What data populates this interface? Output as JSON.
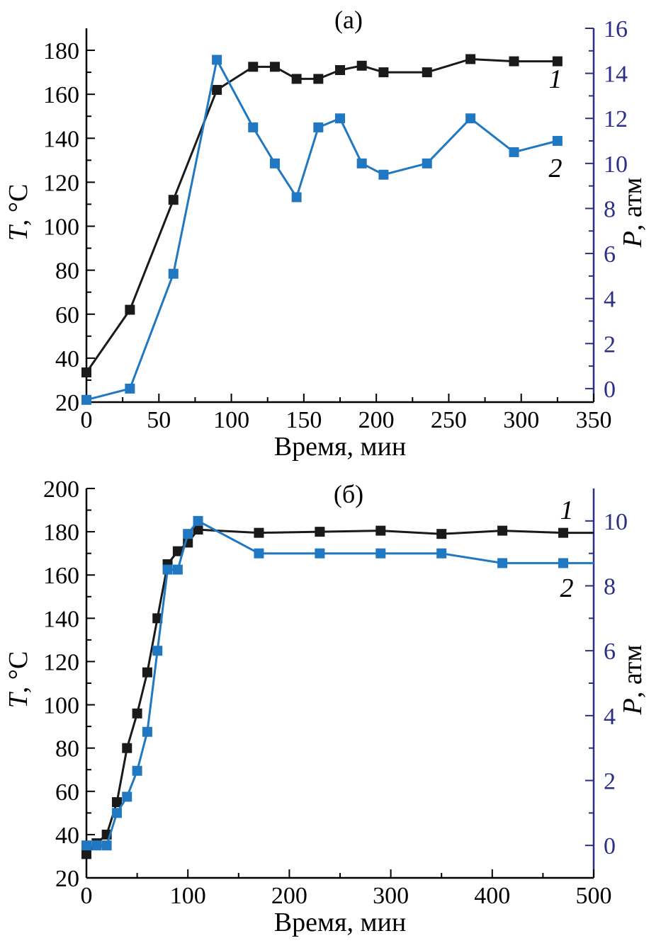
{
  "colors": {
    "axis_left": "#000000",
    "axis_right": "#2b2f86",
    "series_1": "#1a1a1a",
    "series_2": "#1f78c1"
  },
  "chart_data": [
    {
      "type": "line",
      "panel_label": "(а)",
      "xlabel": "Время, мин",
      "ylabel_left": {
        "symbol": "T",
        "unit": ", °С"
      },
      "ylabel_right": {
        "symbol": "P",
        "unit": ", атм"
      },
      "xlim": [
        0,
        350
      ],
      "xticks": [
        "0",
        "50",
        "100",
        "150",
        "200",
        "250",
        "300",
        "350"
      ],
      "ylim_left": [
        20,
        190
      ],
      "yticks_left": [
        "20",
        "40",
        "60",
        "80",
        "100",
        "120",
        "140",
        "160",
        "180"
      ],
      "ylim_right": [
        -0.6,
        16
      ],
      "yticks_right": [
        "0",
        "2",
        "4",
        "6",
        "8",
        "10",
        "12",
        "14",
        "16"
      ],
      "series": [
        {
          "name": "1",
          "axis": "left",
          "x": [
            0,
            30,
            60,
            90,
            115,
            130,
            145,
            160,
            175,
            190,
            205,
            235,
            265,
            295,
            325
          ],
          "y": [
            33.5,
            62,
            112,
            162,
            172.5,
            172.5,
            167,
            167,
            171,
            173,
            170,
            170,
            176,
            175,
            175
          ]
        },
        {
          "name": "2",
          "axis": "right",
          "x": [
            0,
            30,
            60,
            90,
            115,
            130,
            145,
            160,
            175,
            190,
            205,
            235,
            265,
            295,
            325
          ],
          "y": [
            -0.5,
            0,
            5.1,
            14.6,
            11.6,
            10,
            8.5,
            11.6,
            12,
            10,
            9.5,
            10,
            12,
            10.5,
            11
          ]
        }
      ]
    },
    {
      "type": "line",
      "panel_label": "(б)",
      "xlabel": "Время, мин",
      "ylabel_left": {
        "symbol": "T",
        "unit": ", °С"
      },
      "ylabel_right": {
        "symbol": "P",
        "unit": ", атм"
      },
      "xlim": [
        0,
        500
      ],
      "xticks": [
        "0",
        "100",
        "200",
        "300",
        "400",
        "500"
      ],
      "ylim_left": [
        20,
        200
      ],
      "yticks_left": [
        "20",
        "40",
        "60",
        "80",
        "100",
        "120",
        "140",
        "160",
        "180",
        "200"
      ],
      "ylim_right": [
        -1,
        11
      ],
      "yticks_right": [
        "0",
        "2",
        "4",
        "6",
        "8",
        "10"
      ],
      "series": [
        {
          "name": "1",
          "axis": "left",
          "x": [
            0,
            10,
            20,
            30,
            40,
            50,
            60,
            70,
            80,
            90,
            100,
            110,
            170,
            230,
            290,
            350,
            410,
            470,
            500
          ],
          "y": [
            31,
            36,
            40,
            55,
            80,
            96,
            115,
            140,
            165,
            171,
            175,
            181,
            179.5,
            180,
            180.5,
            179,
            180.5,
            179.5,
            179.5
          ],
          "markers_until": 470
        },
        {
          "name": "2",
          "axis": "right",
          "x": [
            0,
            10,
            20,
            30,
            40,
            50,
            60,
            70,
            80,
            90,
            100,
            110,
            170,
            230,
            290,
            350,
            410,
            470,
            500
          ],
          "y": [
            0,
            0,
            0,
            1,
            1.5,
            2.3,
            3.5,
            6,
            8.5,
            8.5,
            9.6,
            10,
            9,
            9,
            9,
            9,
            8.7,
            8.7,
            8.7
          ],
          "markers_until": 470
        }
      ]
    }
  ]
}
